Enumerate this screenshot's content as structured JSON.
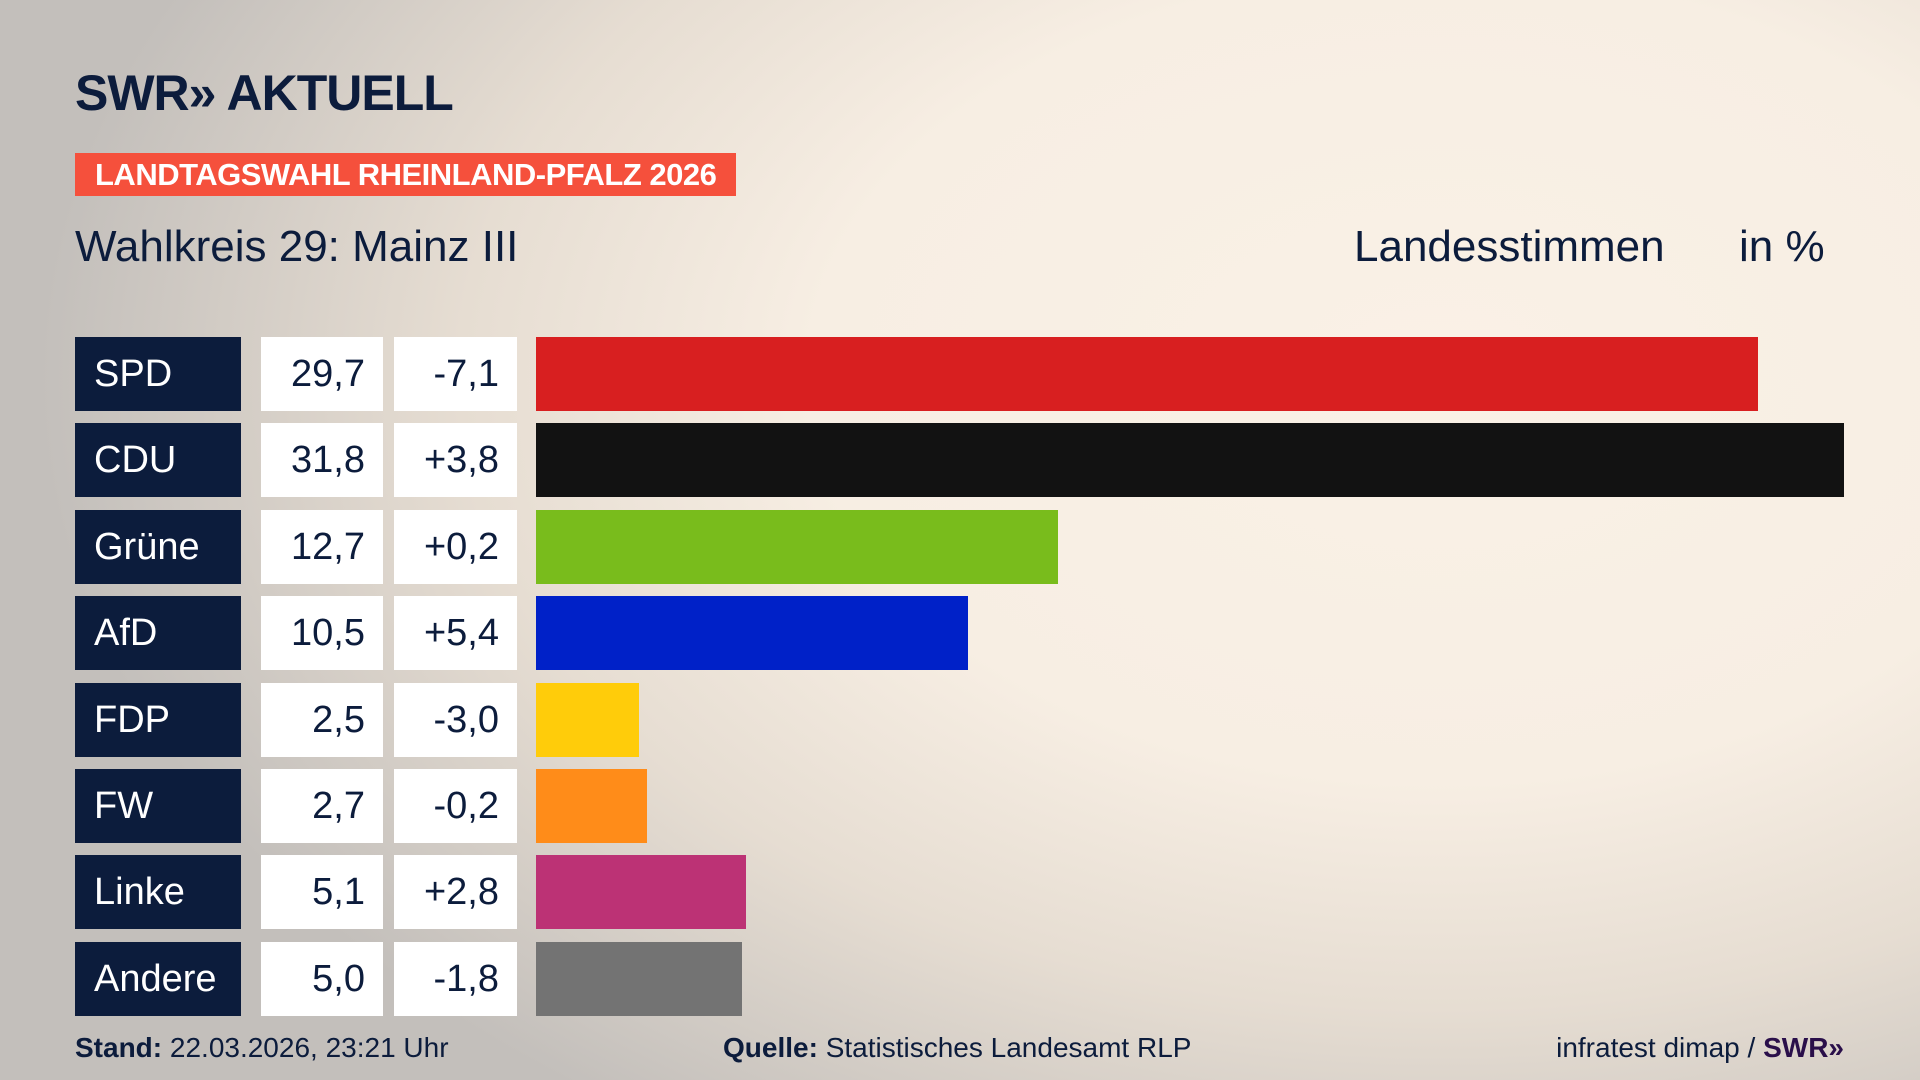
{
  "header": {
    "logo_text": "SWR» AKTUELL",
    "badge": "LANDTAGSWAHL RHEINLAND-PFALZ 2026",
    "subtitle": "Wahlkreis 29: Mainz III",
    "measure": "Landesstimmen",
    "unit": "in %"
  },
  "chart_data": {
    "type": "bar",
    "orientation": "horizontal",
    "title": "Wahlkreis 29: Mainz III",
    "ylabel": "Landesstimmen in %",
    "categories": [
      "SPD",
      "CDU",
      "Grüne",
      "AfD",
      "FDP",
      "FW",
      "Linke",
      "Andere"
    ],
    "values": [
      29.7,
      31.8,
      12.7,
      10.5,
      2.5,
      2.7,
      5.1,
      5.0
    ],
    "values_label": [
      "29,7",
      "31,8",
      "12,7",
      "10,5",
      "2,5",
      "2,7",
      "5,1",
      "5,0"
    ],
    "change": [
      -7.1,
      3.8,
      0.2,
      5.4,
      -3.0,
      -0.2,
      2.8,
      -1.8
    ],
    "change_label": [
      "-7,1",
      "+3,8",
      "+0,2",
      "+5,4",
      "-3,0",
      "-0,2",
      "+2,8",
      "-1,8"
    ],
    "colors": [
      "#d81f20",
      "#121212",
      "#79bc1c",
      "#0021c8",
      "#ffcc0a",
      "#ff8c19",
      "#bc3275",
      "#737373"
    ],
    "xlim": [
      0,
      31.8
    ],
    "grid": false
  },
  "footer": {
    "stand_label": "Stand:",
    "stand_value": "22.03.2026, 23:21 Uhr",
    "source_label": "Quelle:",
    "source_value": "Statistisches Landesamt RLP",
    "credit": "infratest dimap /",
    "credit_logo": "SWR»"
  }
}
